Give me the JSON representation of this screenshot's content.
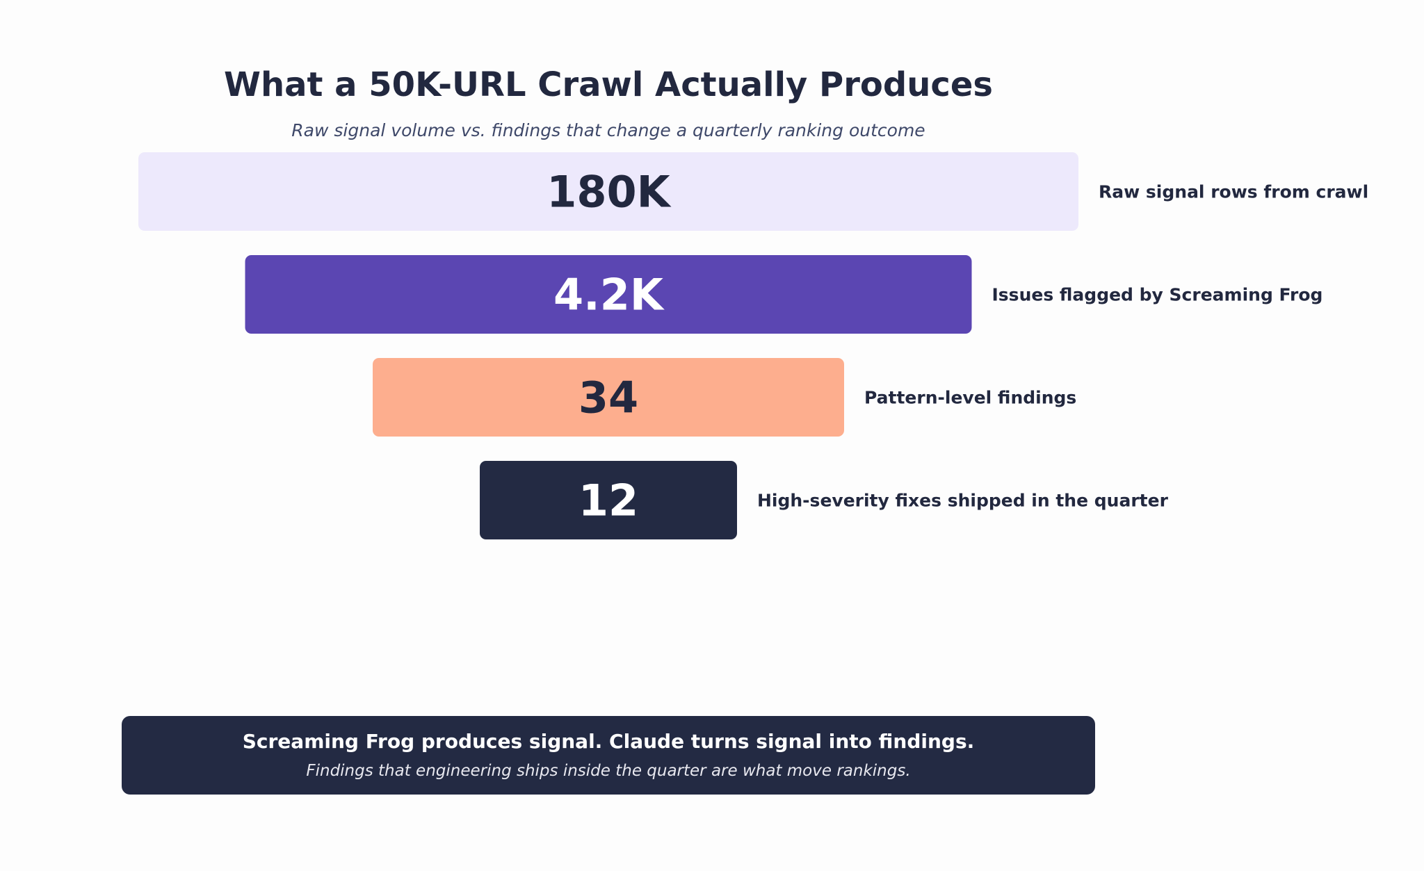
{
  "chart_data": {
    "type": "bar",
    "title": "What a 50K-URL Crawl Actually Produces",
    "subtitle": "Raw signal volume vs. findings that change a quarterly ranking outcome",
    "stages": [
      {
        "value_label": "180K",
        "label": "Raw signal rows from crawl",
        "fill": "#ede9fc",
        "text_color": "#22283f"
      },
      {
        "value_label": "4.2K",
        "label": "Issues flagged by Screaming Frog",
        "fill": "#5b46b2",
        "text_color": "#ffffff"
      },
      {
        "value_label": "34",
        "label": "Pattern-level findings",
        "fill": "#fdae8e",
        "text_color": "#22283f"
      },
      {
        "value_label": "12",
        "label": "High-severity fixes shipped in the quarter",
        "fill": "#232a43",
        "text_color": "#ffffff"
      }
    ]
  },
  "takeaway": {
    "headline": "Screaming Frog produces signal. Claude turns signal into findings.",
    "note": "Findings that engineering ships inside the quarter are what move rankings."
  }
}
